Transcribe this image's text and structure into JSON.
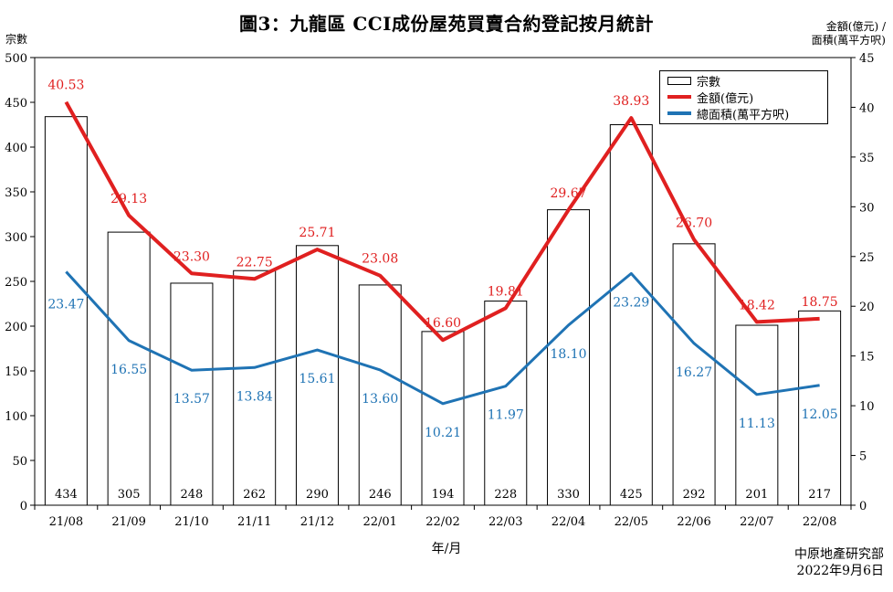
{
  "chart_data": {
    "type": "bar",
    "title": "圖3：九龍區 CCI成份屋苑買賣合約登記按月統計",
    "ylabel_left": "宗數",
    "ylabel_right": [
      "金額(億元) /",
      "面積(萬平方呎)"
    ],
    "xlabel": "年/月",
    "categories": [
      "21/08",
      "21/09",
      "21/10",
      "21/11",
      "21/12",
      "22/01",
      "22/02",
      "22/03",
      "22/04",
      "22/05",
      "22/06",
      "22/07",
      "22/08"
    ],
    "ylim_left": [
      0,
      500
    ],
    "ylim_right": [
      0,
      45
    ],
    "yticks_left": [
      0,
      50,
      100,
      150,
      200,
      250,
      300,
      350,
      400,
      450,
      500
    ],
    "yticks_right": [
      0,
      5,
      10,
      15,
      20,
      25,
      30,
      35,
      40,
      45
    ],
    "series": [
      {
        "name": "宗數",
        "type": "bar",
        "axis": "left",
        "color": "#000000",
        "values": [
          434,
          305,
          248,
          262,
          290,
          246,
          194,
          228,
          330,
          425,
          292,
          201,
          217
        ]
      },
      {
        "name": "金額(億元)",
        "type": "line",
        "axis": "right",
        "color": "#e02020",
        "values": [
          40.53,
          29.13,
          23.3,
          22.75,
          25.71,
          23.08,
          16.6,
          19.81,
          29.67,
          38.93,
          26.7,
          18.42,
          18.75
        ]
      },
      {
        "name": "總面積(萬平方呎)",
        "type": "line",
        "axis": "right",
        "color": "#1f73b4",
        "values": [
          23.47,
          16.55,
          13.57,
          13.84,
          15.61,
          13.6,
          10.21,
          11.97,
          18.1,
          23.29,
          16.27,
          11.13,
          12.05
        ]
      }
    ],
    "amount_labels": [
      "40.53",
      "29.13",
      "23.30",
      "22.75",
      "25.71",
      "23.08",
      "16.60",
      "19.81",
      "29.67",
      "38.93",
      "26.70",
      "18.42",
      "18.75"
    ],
    "area_labels": [
      "23.47",
      "16.55",
      "13.57",
      "13.84",
      "15.61",
      "13.60",
      "10.21",
      "11.97",
      "18.10",
      "23.29",
      "16.27",
      "11.13",
      "12.05"
    ],
    "legend_position": "top-right",
    "grid": false
  },
  "source": {
    "org": "中原地產研究部",
    "date": "2022年9月6日"
  }
}
